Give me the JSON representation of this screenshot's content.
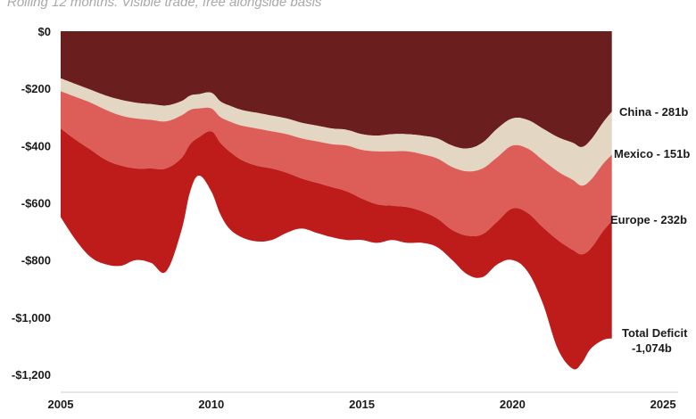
{
  "subtitle": "Rolling 12 months. Visible trade, free alongside basis",
  "chart_data": {
    "type": "area",
    "title": "",
    "subtitle": "Rolling 12 months. Visible trade, free alongside basis",
    "xlabel": "",
    "ylabel": "",
    "xlim": [
      2005,
      2025.5
    ],
    "ylim": [
      -1260,
      0
    ],
    "x_ticks": [
      2005,
      2010,
      2015,
      2020,
      2025
    ],
    "x_tick_labels": [
      "2005",
      "2010",
      "2015",
      "2020",
      "2025"
    ],
    "y_ticks": [
      0,
      -200,
      -400,
      -600,
      -800,
      -1000,
      -1200
    ],
    "y_tick_labels": [
      "$0",
      "-$200",
      "-$400",
      "-$600",
      "-$800",
      "-$1,000",
      "-$1,200"
    ],
    "grid": false,
    "legend": "direct labels at right end",
    "x": [
      2005.0,
      2005.5,
      2006.0,
      2006.5,
      2007.0,
      2007.5,
      2008.0,
      2008.5,
      2009.0,
      2009.3,
      2009.6,
      2010.0,
      2010.3,
      2010.6,
      2011.0,
      2011.5,
      2012.0,
      2012.5,
      2013.0,
      2013.5,
      2014.0,
      2014.5,
      2015.0,
      2015.5,
      2016.0,
      2016.5,
      2017.0,
      2017.5,
      2018.0,
      2018.5,
      2019.0,
      2019.5,
      2020.0,
      2020.5,
      2021.0,
      2021.5,
      2022.0,
      2022.3,
      2022.6,
      2023.0,
      2023.3
    ],
    "series": [
      {
        "name": "China",
        "end_label": "China - 281b",
        "color": "#6b1e1e",
        "values": [
          -165,
          -185,
          -205,
          -225,
          -240,
          -250,
          -255,
          -260,
          -245,
          -225,
          -220,
          -215,
          -245,
          -260,
          -275,
          -285,
          -295,
          -305,
          -320,
          -330,
          -340,
          -345,
          -360,
          -365,
          -360,
          -360,
          -365,
          -375,
          -400,
          -410,
          -390,
          -340,
          -305,
          -310,
          -340,
          -370,
          -390,
          -405,
          -380,
          -320,
          -281
        ]
      },
      {
        "name": "Mexico",
        "end_label": "Mexico - 151b",
        "color": "#e3d6c3",
        "values": [
          -45,
          -45,
          -45,
          -50,
          -55,
          -55,
          -55,
          -55,
          -50,
          -50,
          -50,
          -55,
          -55,
          -55,
          -55,
          -55,
          -55,
          -55,
          -55,
          -55,
          -55,
          -55,
          -55,
          -55,
          -60,
          -60,
          -65,
          -70,
          -75,
          -80,
          -90,
          -100,
          -95,
          -100,
          -110,
          -120,
          -130,
          -135,
          -140,
          -145,
          -151
        ]
      },
      {
        "name": "Europe",
        "end_label": "Europe - 232b",
        "color": "#dd5e58",
        "values": [
          -130,
          -150,
          -165,
          -175,
          -175,
          -175,
          -170,
          -165,
          -150,
          -120,
          -100,
          -80,
          -90,
          -105,
          -120,
          -130,
          -130,
          -135,
          -140,
          -145,
          -150,
          -160,
          -170,
          -185,
          -190,
          -195,
          -200,
          -210,
          -220,
          -225,
          -230,
          -225,
          -220,
          -225,
          -235,
          -240,
          -245,
          -240,
          -240,
          -235,
          -232
        ]
      },
      {
        "name": "Total Deficit",
        "end_label": "Total Deficit -1,074b",
        "color": "#bd1c1b",
        "values": [
          -650,
          -730,
          -790,
          -815,
          -820,
          -800,
          -810,
          -840,
          -700,
          -560,
          -505,
          -560,
          -640,
          -690,
          -720,
          -735,
          -730,
          -705,
          -690,
          -705,
          -720,
          -730,
          -730,
          -740,
          -730,
          -740,
          -740,
          -755,
          -800,
          -850,
          -860,
          -815,
          -800,
          -840,
          -950,
          -1110,
          -1180,
          -1160,
          -1110,
          -1080,
          -1074
        ]
      }
    ]
  },
  "labels": {
    "china": "China - 281b",
    "mexico": "Mexico - 151b",
    "europe": "Europe - 232b",
    "total_line1": "Total Deficit",
    "total_line2": "-1,074b"
  }
}
